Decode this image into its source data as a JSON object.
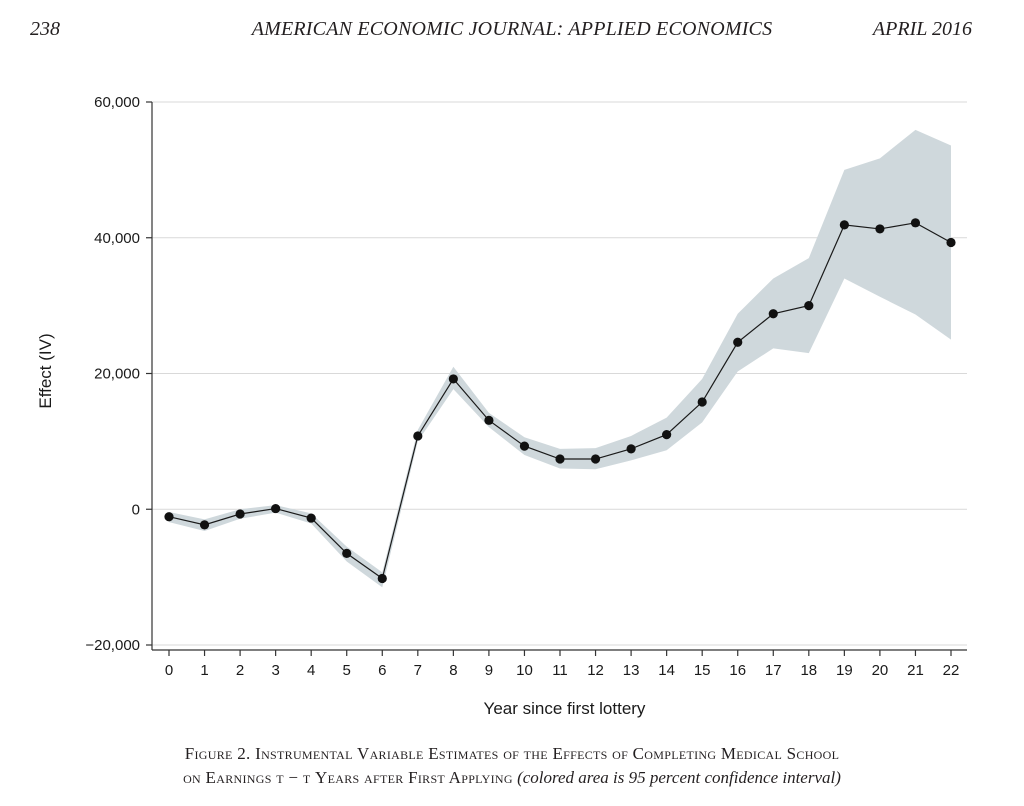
{
  "header": {
    "page_number": "238",
    "journal": "AMERICAN ECONOMIC JOURNAL: APPLIED ECONOMICS",
    "date": "APRIL 2016"
  },
  "caption": {
    "line1": "Figure 2. Instrumental Variable Estimates of the Effects of Completing Medical School",
    "line2_main": "on Earnings t − τ Years after First Applying",
    "line2_note": "(colored area is 95 percent confidence interval)"
  },
  "chart_data": {
    "type": "line",
    "xlabel": "Year since first lottery",
    "ylabel": "Effect (IV)",
    "x": [
      0,
      1,
      2,
      3,
      4,
      5,
      6,
      7,
      8,
      9,
      10,
      11,
      12,
      13,
      14,
      15,
      16,
      17,
      18,
      19,
      20,
      21,
      22
    ],
    "series": [
      {
        "values": [
          -1100,
          -2300,
          -700,
          100,
          -1300,
          -6500,
          -10200,
          10800,
          19200,
          13100,
          9300,
          7400,
          7400,
          8900,
          11000,
          15800,
          24600,
          28800,
          30000,
          41900,
          41300,
          42200,
          39300
        ],
        "ci_lower": [
          -1900,
          -3200,
          -1400,
          -500,
          -2100,
          -7700,
          -11500,
          10000,
          17700,
          12100,
          8000,
          6000,
          5900,
          7200,
          8700,
          12800,
          20300,
          23700,
          23000,
          34000,
          31300,
          28700,
          25000
        ],
        "ci_upper": [
          -400,
          -1500,
          0,
          600,
          -600,
          -5500,
          -9300,
          11700,
          21000,
          14200,
          10600,
          8900,
          9000,
          10800,
          13500,
          19200,
          28800,
          34000,
          37000,
          50000,
          51700,
          55900,
          53600
        ]
      }
    ],
    "ylim": [
      -20000,
      60000
    ],
    "yticks": [
      -20000,
      0,
      20000,
      40000,
      60000
    ],
    "ytick_labels": [
      "−20,000",
      "0",
      "20,000",
      "40,000",
      "60,000"
    ],
    "xticks": [
      0,
      1,
      2,
      3,
      4,
      5,
      6,
      7,
      8,
      9,
      10,
      11,
      12,
      13,
      14,
      15,
      16,
      17,
      18,
      19,
      20,
      21,
      22
    ],
    "grid": "horizontal",
    "colors": {
      "ci_band": "#cfd8dc",
      "line": "#1a1a1a",
      "marker": "#111111",
      "grid": "#d9d9d9"
    }
  }
}
